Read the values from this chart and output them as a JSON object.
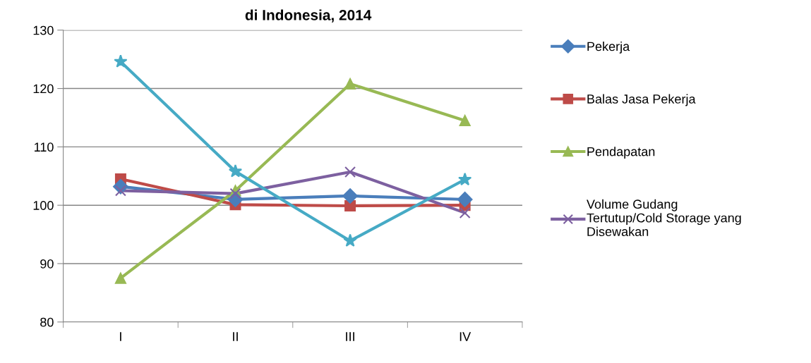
{
  "chart_data": {
    "type": "line",
    "title": "di Indonesia, 2014",
    "categories": [
      "I",
      "II",
      "III",
      "IV"
    ],
    "series": [
      {
        "name": "Pekerja",
        "color": "#4a7ebb",
        "marker": "diamond",
        "values": [
          103.2,
          101.0,
          101.6,
          101.0
        ]
      },
      {
        "name": "Balas Jasa Pekerja",
        "color": "#be4b48",
        "marker": "square",
        "values": [
          104.5,
          100.1,
          99.9,
          100.0
        ]
      },
      {
        "name": "Pendapatan",
        "color": "#98b954",
        "marker": "triangle",
        "values": [
          87.5,
          102.5,
          120.8,
          114.5
        ]
      },
      {
        "name": "Volume Gudang\nTertutup/Cold Storage yang\nDisewakan",
        "color": "#7d60a0",
        "marker": "cross",
        "values": [
          102.5,
          102.0,
          105.7,
          98.7
        ]
      },
      {
        "color": "#46aac5",
        "marker": "star",
        "values": [
          124.6,
          105.8,
          93.9,
          104.4
        ]
      }
    ],
    "ylim": [
      80,
      130
    ],
    "yticks": [
      80,
      90,
      100,
      110,
      120,
      130
    ],
    "grid": "y",
    "legend": "right",
    "line_style": "solid"
  }
}
